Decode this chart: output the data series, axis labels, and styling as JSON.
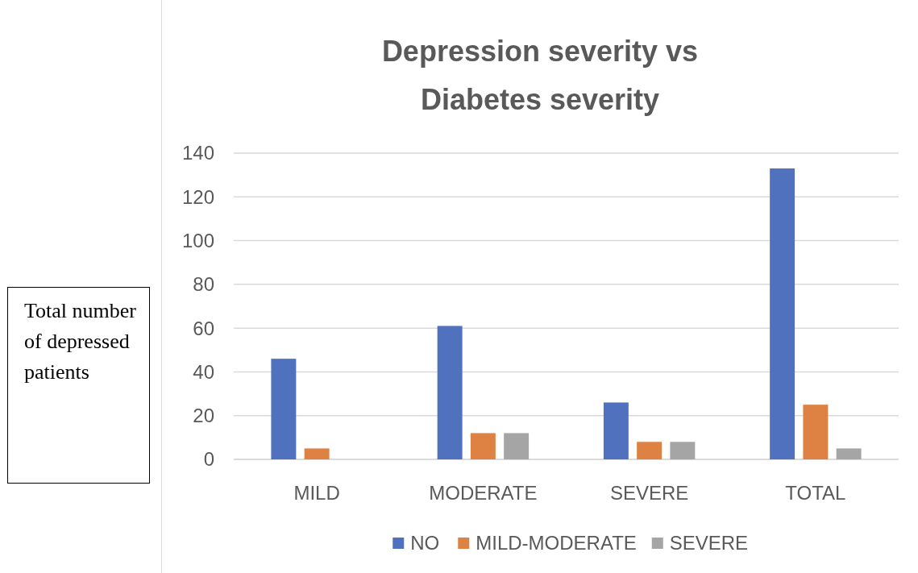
{
  "chart_data": {
    "type": "bar",
    "title": "Depression severity  vs Diabetes severity",
    "ylabel": "Total number of depressed patients",
    "categories": [
      "MILD",
      "MODERATE",
      "SEVERE",
      "TOTAL"
    ],
    "series": [
      {
        "name": "NO",
        "color": "#4f71be",
        "values": [
          46,
          61,
          26,
          133
        ]
      },
      {
        "name": "MILD-MODERATE",
        "color": "#de8244",
        "values": [
          5,
          12,
          8,
          25
        ]
      },
      {
        "name": "SEVERE",
        "color": "#a5a5a5",
        "values": [
          0,
          12,
          8,
          5
        ]
      }
    ],
    "ylim": [
      0,
      140
    ],
    "yticks": [
      0,
      20,
      40,
      60,
      80,
      100,
      120,
      140
    ],
    "grid": "y",
    "legend": "bottom"
  }
}
